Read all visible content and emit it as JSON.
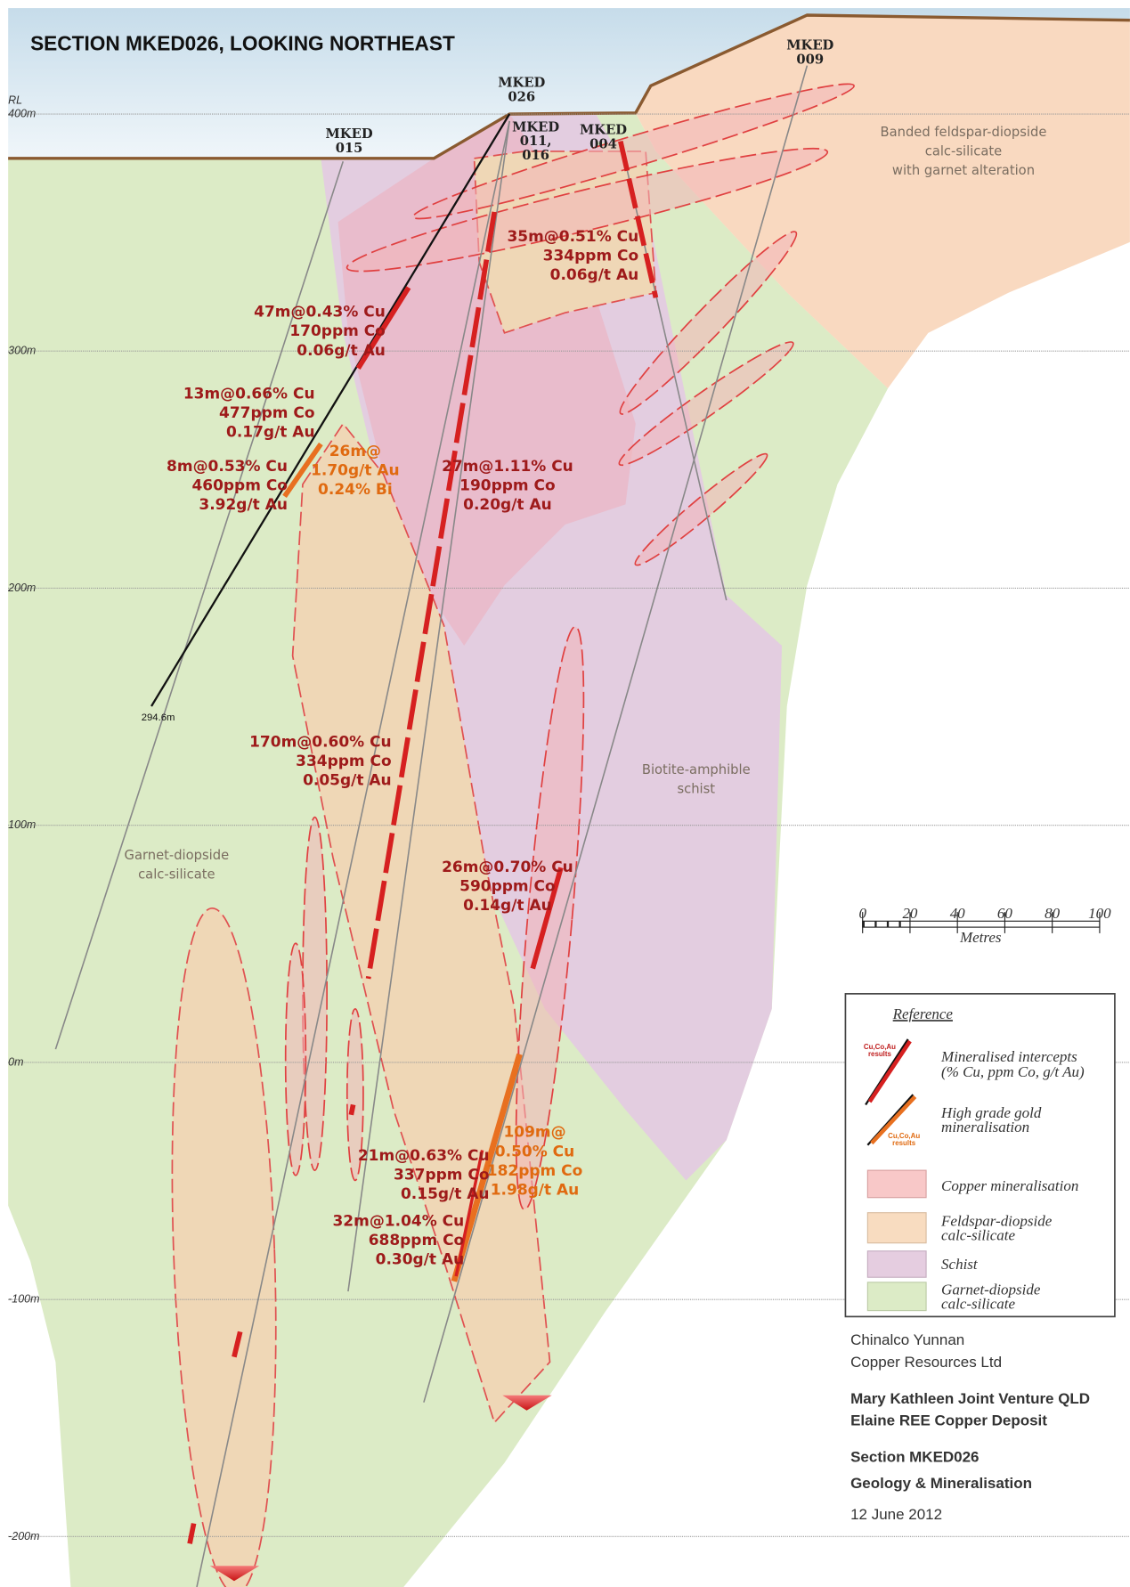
{
  "title": "SECTION MKED026, LOOKING NORTHEAST",
  "elevation": {
    "label": "RL",
    "levels": [
      "400m",
      "300m",
      "200m",
      "100m",
      "0m",
      "-100m",
      "-200m"
    ]
  },
  "drillholes": [
    {
      "lines": [
        "MKED",
        "015"
      ]
    },
    {
      "lines": [
        "MKED",
        "026"
      ]
    },
    {
      "lines": [
        "MKED",
        "011,",
        "016"
      ]
    },
    {
      "lines": [
        "MKED",
        "004"
      ]
    },
    {
      "lines": [
        "MKED",
        "009"
      ]
    }
  ],
  "hole_depth": "294.6m",
  "intercepts": [
    {
      "lines": [
        "47m@0.43% Cu",
        "170ppm Co",
        "0.06g/t Au"
      ]
    },
    {
      "lines": [
        "13m@0.66% Cu",
        "477ppm Co",
        "0.17g/t Au"
      ]
    },
    {
      "lines": [
        "8m@0.53% Cu",
        "460ppm Co",
        "3.92g/t Au"
      ]
    },
    {
      "lines": [
        "26m@",
        "1.70g/t Au",
        "0.24% Bi"
      ]
    },
    {
      "lines": [
        "27m@1.11% Cu",
        "190ppm Co",
        "0.20g/t Au"
      ]
    },
    {
      "lines": [
        "35m@0.51% Cu",
        "334ppm Co",
        "0.06g/t Au"
      ]
    },
    {
      "lines": [
        "170m@0.60% Cu",
        "334ppm Co",
        "0.05g/t Au"
      ]
    },
    {
      "lines": [
        "26m@0.70% Cu",
        "590ppm Co",
        "0.14g/t Au"
      ]
    },
    {
      "lines": [
        "21m@0.63% Cu",
        "337ppm Co",
        "0.15g/t Au"
      ]
    },
    {
      "lines": [
        "109m@",
        "0.50% Cu",
        "182ppm Co",
        "1.98g/t Au"
      ]
    },
    {
      "lines": [
        "32m@1.04% Cu",
        "688ppm Co",
        "0.30g/t Au"
      ]
    }
  ],
  "lithology": [
    {
      "lines": [
        "Banded feldspar-diopside",
        "calc-silicate",
        "with garnet alteration"
      ]
    },
    {
      "lines": [
        "Biotite-amphible",
        "schist"
      ]
    },
    {
      "lines": [
        "Garnet-diopside",
        "calc-silicate"
      ]
    }
  ],
  "scale_bar": {
    "ticks": [
      "0",
      "20",
      "40",
      "60",
      "80",
      "100"
    ],
    "unit": "Metres"
  },
  "legend": {
    "title": "Reference",
    "items": [
      {
        "label": [
          "Mineralised intercepts"
        ],
        "note": "(% Cu, ppm Co, g/t Au)",
        "icon_text": [
          "Cu,Co,Au",
          "results"
        ]
      },
      {
        "label": [
          "High grade gold",
          "mineralisation"
        ],
        "icon_text": [
          "Cu,Co,Au",
          "results"
        ]
      },
      {
        "label": [
          "Copper mineralisation"
        ]
      },
      {
        "label": [
          "Feldspar-diopside",
          "calc-silicate"
        ]
      },
      {
        "label": [
          "Schist"
        ]
      },
      {
        "label": [
          "Garnet-diopside",
          "calc-silicate"
        ]
      }
    ]
  },
  "credits": {
    "company": [
      "Chinalco Yunnan",
      "Copper Resources Ltd"
    ],
    "project": [
      "Mary Kathleen Joint Venture QLD",
      "Elaine REE Copper Deposit"
    ],
    "heading": [
      "Section MKED026",
      "Geology & Mineralisation"
    ],
    "date": "12 June 2012"
  }
}
